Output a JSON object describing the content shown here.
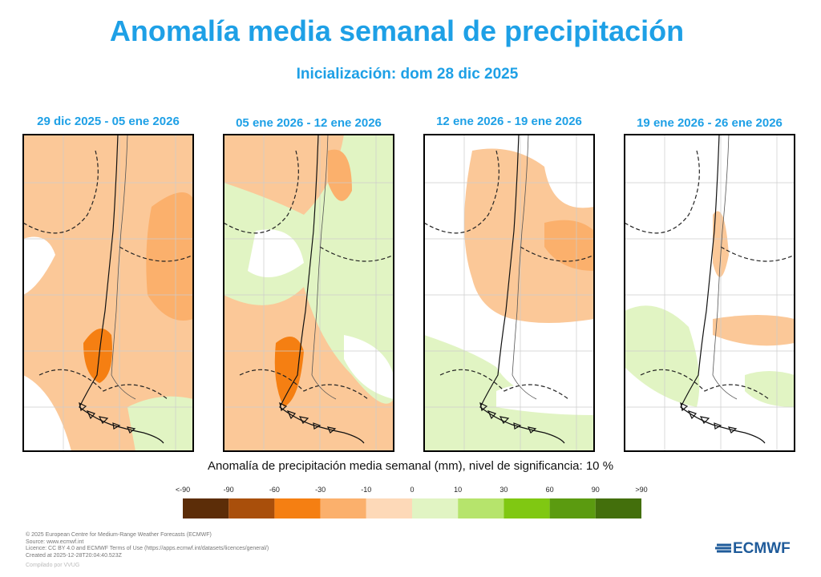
{
  "header": {
    "title": "Anomalía media semanal de precipitación",
    "subtitle": "Inicialización: dom 28 dic 2025"
  },
  "panels": [
    {
      "title": "29 dic 2025 - 05 ene 2026"
    },
    {
      "title": "05 ene 2026 - 12 ene 2026"
    },
    {
      "title": "12 ene 2026 - 19 ene 2026"
    },
    {
      "title": "19 ene 2026 - 26 ene 2026"
    }
  ],
  "caption": "Anomalía de precipitación media semanal (mm), nivel de significancia: 10 %",
  "colorbar": {
    "labels": [
      "<-90",
      "-90",
      "-60",
      "-30",
      "-10",
      "0",
      "10",
      "30",
      "60",
      "90",
      ">90"
    ],
    "colors": [
      "#5c2d08",
      "#a94f0b",
      "#f57f12",
      "#fbb06c",
      "#fdd9b8",
      "#e1f4c3",
      "#b6e46c",
      "#80c812",
      "#5b9b10",
      "#436f0c"
    ]
  },
  "footer": {
    "lines": [
      "© 2025 European Centre for Medium-Range Weather Forecasts (ECMWF)",
      "Source: www.ecmwf.int",
      "Licence: CC BY 4.0 and ECMWF Terms of Use (https://apps.ecmwf.int/datasets/licences/general/)",
      "Created at 2025-12-28T20:04:40.523Z"
    ],
    "credit": "Compilado por VVUG",
    "logo": "ECMWF"
  }
}
